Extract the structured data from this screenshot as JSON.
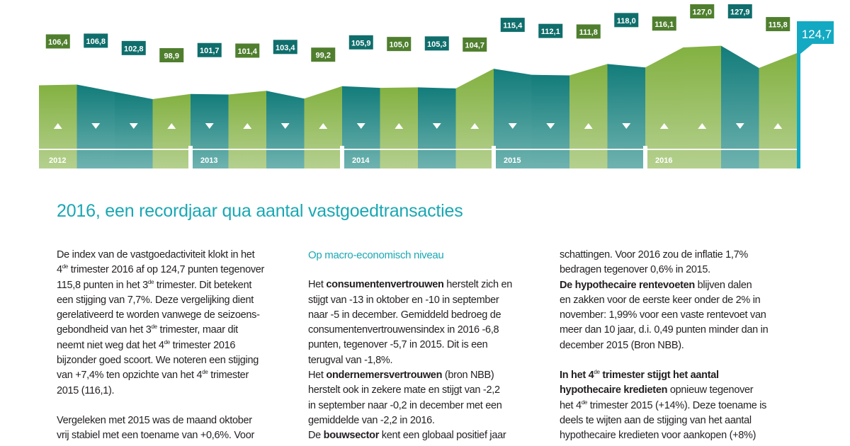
{
  "chart_data": {
    "type": "area",
    "values": [
      "106,4",
      "106,8",
      "102,8",
      "98,9",
      "101,7",
      "101,4",
      "103,4",
      "99,2",
      "105,9",
      "105,0",
      "105,3",
      "104,7",
      "115,4",
      "112,1",
      "111,8",
      "118,0",
      "116,1",
      "127,0",
      "127,9",
      "115,8"
    ],
    "numeric": [
      106.4,
      106.8,
      102.8,
      98.9,
      101.7,
      101.4,
      103.4,
      99.2,
      105.9,
      105.0,
      105.3,
      104.7,
      115.4,
      112.1,
      111.8,
      118.0,
      116.1,
      127.0,
      127.9,
      115.8
    ],
    "directions": [
      "up",
      "down",
      "down",
      "up",
      "down",
      "up",
      "down",
      "up",
      "down",
      "up",
      "down",
      "up",
      "down",
      "down",
      "up",
      "down",
      "up",
      "up",
      "down",
      "up"
    ],
    "years": [
      "2012",
      "2013",
      "2014",
      "2015",
      "2016"
    ],
    "final_value": "124,7",
    "colors": {
      "up": "#7fae3e",
      "down": "#137d7b",
      "up_label": "#4f7f2e",
      "down_label": "#0f6e6c",
      "final": "#14a9c2"
    }
  },
  "article": {
    "title": "2016, een recordjaar qua aantal vastgoedtransacties",
    "col1": {
      "p1": [
        {
          "t": "De index van de vastgoedactiviteit klokt in het "
        },
        {
          "br": true
        },
        {
          "t": "4"
        },
        {
          "sup": "de"
        },
        {
          "t": " trimester 2016 af op 124,7 punten tegenover"
        },
        {
          "br": true
        },
        {
          "t": "115,8 punten in het 3"
        },
        {
          "sup": "de"
        },
        {
          "t": " trimester. Dit betekent"
        },
        {
          "br": true
        },
        {
          "t": "een stijging van 7,7%. Deze vergelijking dient"
        },
        {
          "br": true
        },
        {
          "t": "gerelativeerd te worden vanwege de seizoens-"
        },
        {
          "br": true
        },
        {
          "t": "gebondheid van het 3"
        },
        {
          "sup": "de"
        },
        {
          "t": " trimester, maar dit"
        },
        {
          "br": true
        },
        {
          "t": "neemt niet weg dat het 4"
        },
        {
          "sup": "de"
        },
        {
          "t": " trimester 2016"
        },
        {
          "br": true
        },
        {
          "t": "bijzonder goed scoort. We noteren een stijging"
        },
        {
          "br": true
        },
        {
          "t": "van +7,4% ten opzichte van het 4"
        },
        {
          "sup": "de"
        },
        {
          "t": " trimester"
        },
        {
          "br": true
        },
        {
          "t": "2015 (116,1)."
        }
      ],
      "p2": [
        {
          "t": "Vergeleken met 2015 was de maand oktober"
        },
        {
          "br": true
        },
        {
          "t": "vrij stabiel met een toename van +0,6%. Voor"
        }
      ]
    },
    "col2": {
      "subhead": "Op macro-economisch niveau",
      "p1": [
        {
          "t": "Het "
        },
        {
          "b": "consumentenvertrouwen"
        },
        {
          "t": " herstelt zich en"
        },
        {
          "br": true
        },
        {
          "t": "stijgt van -13 in oktober en -10 in september"
        },
        {
          "br": true
        },
        {
          "t": "naar -5 in december. Gemiddeld bedroeg de"
        },
        {
          "br": true
        },
        {
          "t": "consumentenvertrouwensindex in 2016 -6,8"
        },
        {
          "br": true
        },
        {
          "t": "punten, tegenover -5,7 in 2015. Dit is een"
        },
        {
          "br": true
        },
        {
          "t": "terugval van -1,8%."
        },
        {
          "br": true
        },
        {
          "t": "Het "
        },
        {
          "b": "ondernemersvertrouwen"
        },
        {
          "t": " (bron NBB)"
        },
        {
          "br": true
        },
        {
          "t": "herstelt ook in zekere mate en stijgt van -2,2"
        },
        {
          "br": true
        },
        {
          "t": "in september naar -0,2 in december met een"
        },
        {
          "br": true
        },
        {
          "t": "gemiddelde van -2,2 in 2016."
        },
        {
          "br": true
        },
        {
          "t": "De "
        },
        {
          "b": "bouwsector"
        },
        {
          "t": " kent een globaal positief jaar"
        }
      ]
    },
    "col3": {
      "p1": [
        {
          "t": "schattingen. Voor 2016 zou de inflatie 1,7%"
        },
        {
          "br": true
        },
        {
          "t": "bedragen tegenover 0,6% in 2015."
        },
        {
          "br": true
        },
        {
          "b": "De hypothecaire rentevoeten"
        },
        {
          "t": " blijven dalen"
        },
        {
          "br": true
        },
        {
          "t": "en zakken voor de eerste keer onder de 2% in"
        },
        {
          "br": true
        },
        {
          "t": "november: 1,99% voor een vaste rentevoet van"
        },
        {
          "br": true
        },
        {
          "t": "meer dan 10 jaar, d.i. 0,49 punten minder dan in"
        },
        {
          "br": true
        },
        {
          "t": "december 2015 (Bron NBB)."
        }
      ],
      "p2": [
        {
          "b": "In het 4"
        },
        {
          "sup": "de"
        },
        {
          "b": " trimester stijgt het aantal"
        },
        {
          "br": true
        },
        {
          "b": "hypothecaire kredieten"
        },
        {
          "t": " opnieuw tegenover"
        },
        {
          "br": true
        },
        {
          "t": "het 4"
        },
        {
          "sup": "de"
        },
        {
          "t": " trimester 2015 (+14%). Deze toename is"
        },
        {
          "br": true
        },
        {
          "t": "deels te wijten aan de stijging van het aantal"
        },
        {
          "br": true
        },
        {
          "t": "hypothecaire kredieten voor aankopen (+8%)"
        }
      ]
    }
  }
}
